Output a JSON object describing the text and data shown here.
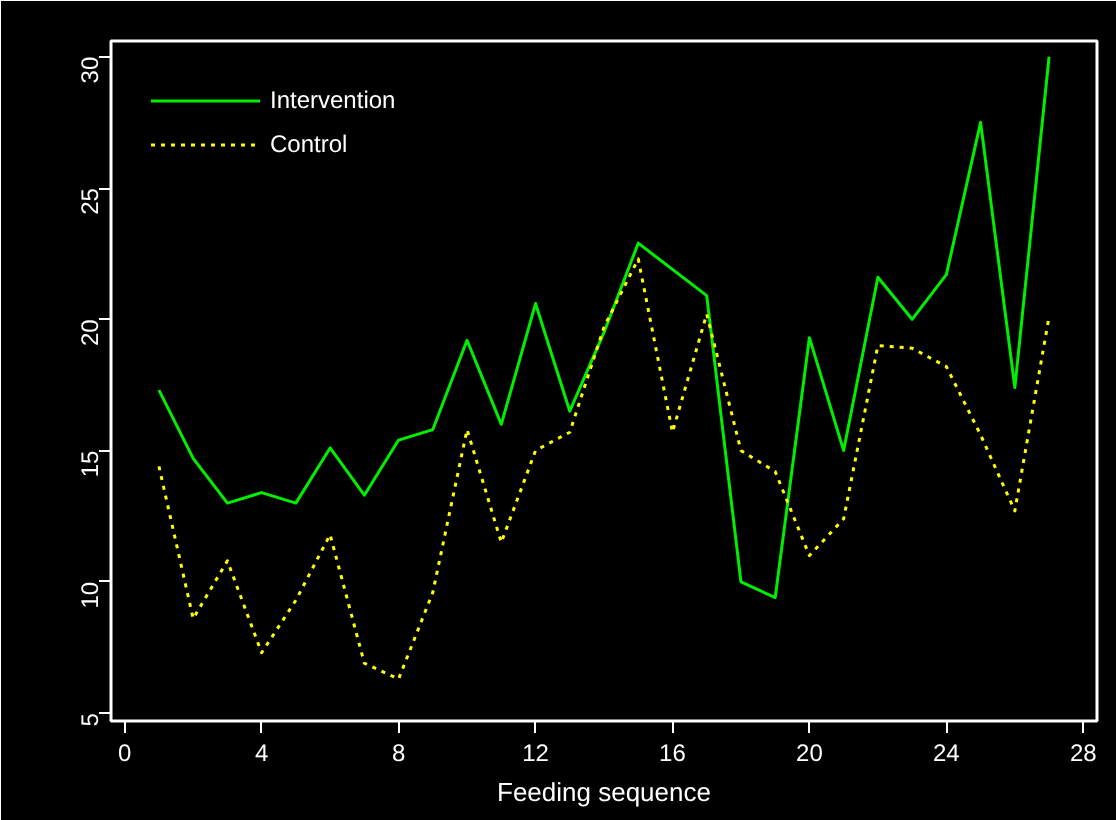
{
  "chart_data": {
    "type": "line",
    "xlabel": "Feeding sequence",
    "x": [
      1,
      2,
      3,
      4,
      5,
      6,
      7,
      8,
      9,
      10,
      11,
      12,
      13,
      14,
      15,
      16,
      17,
      18,
      19,
      20,
      21,
      22,
      23,
      24,
      25,
      26,
      27
    ],
    "series": [
      {
        "name": "Intervention",
        "color": "#00ee00",
        "line_style": "solid",
        "values": [
          17.3,
          14.7,
          13.0,
          13.4,
          13.0,
          15.1,
          13.3,
          15.4,
          15.8,
          19.2,
          16.0,
          20.6,
          16.5,
          19.5,
          22.9,
          21.9,
          20.9,
          10.0,
          9.4,
          19.3,
          15.0,
          21.6,
          20.0,
          21.7,
          27.5,
          17.4,
          30.0
        ]
      },
      {
        "name": "Control",
        "color": "#ffff00",
        "line_style": "dotted",
        "values": [
          14.4,
          8.6,
          10.8,
          7.3,
          9.3,
          11.8,
          6.9,
          6.3,
          9.6,
          15.8,
          11.5,
          15.0,
          15.7,
          19.7,
          22.3,
          15.7,
          20.2,
          15.0,
          14.2,
          11.0,
          12.4,
          19.0,
          18.9,
          18.2,
          15.6,
          12.7,
          20.1
        ]
      }
    ],
    "xlim": [
      -0.4,
      28.4
    ],
    "ylim": [
      4.7,
      30.6
    ],
    "xticks": [
      0,
      4,
      8,
      12,
      16,
      20,
      24,
      28
    ],
    "yticks": [
      5,
      10,
      15,
      20,
      25,
      30
    ],
    "grid": false,
    "legend": "top left",
    "marker": "none"
  }
}
